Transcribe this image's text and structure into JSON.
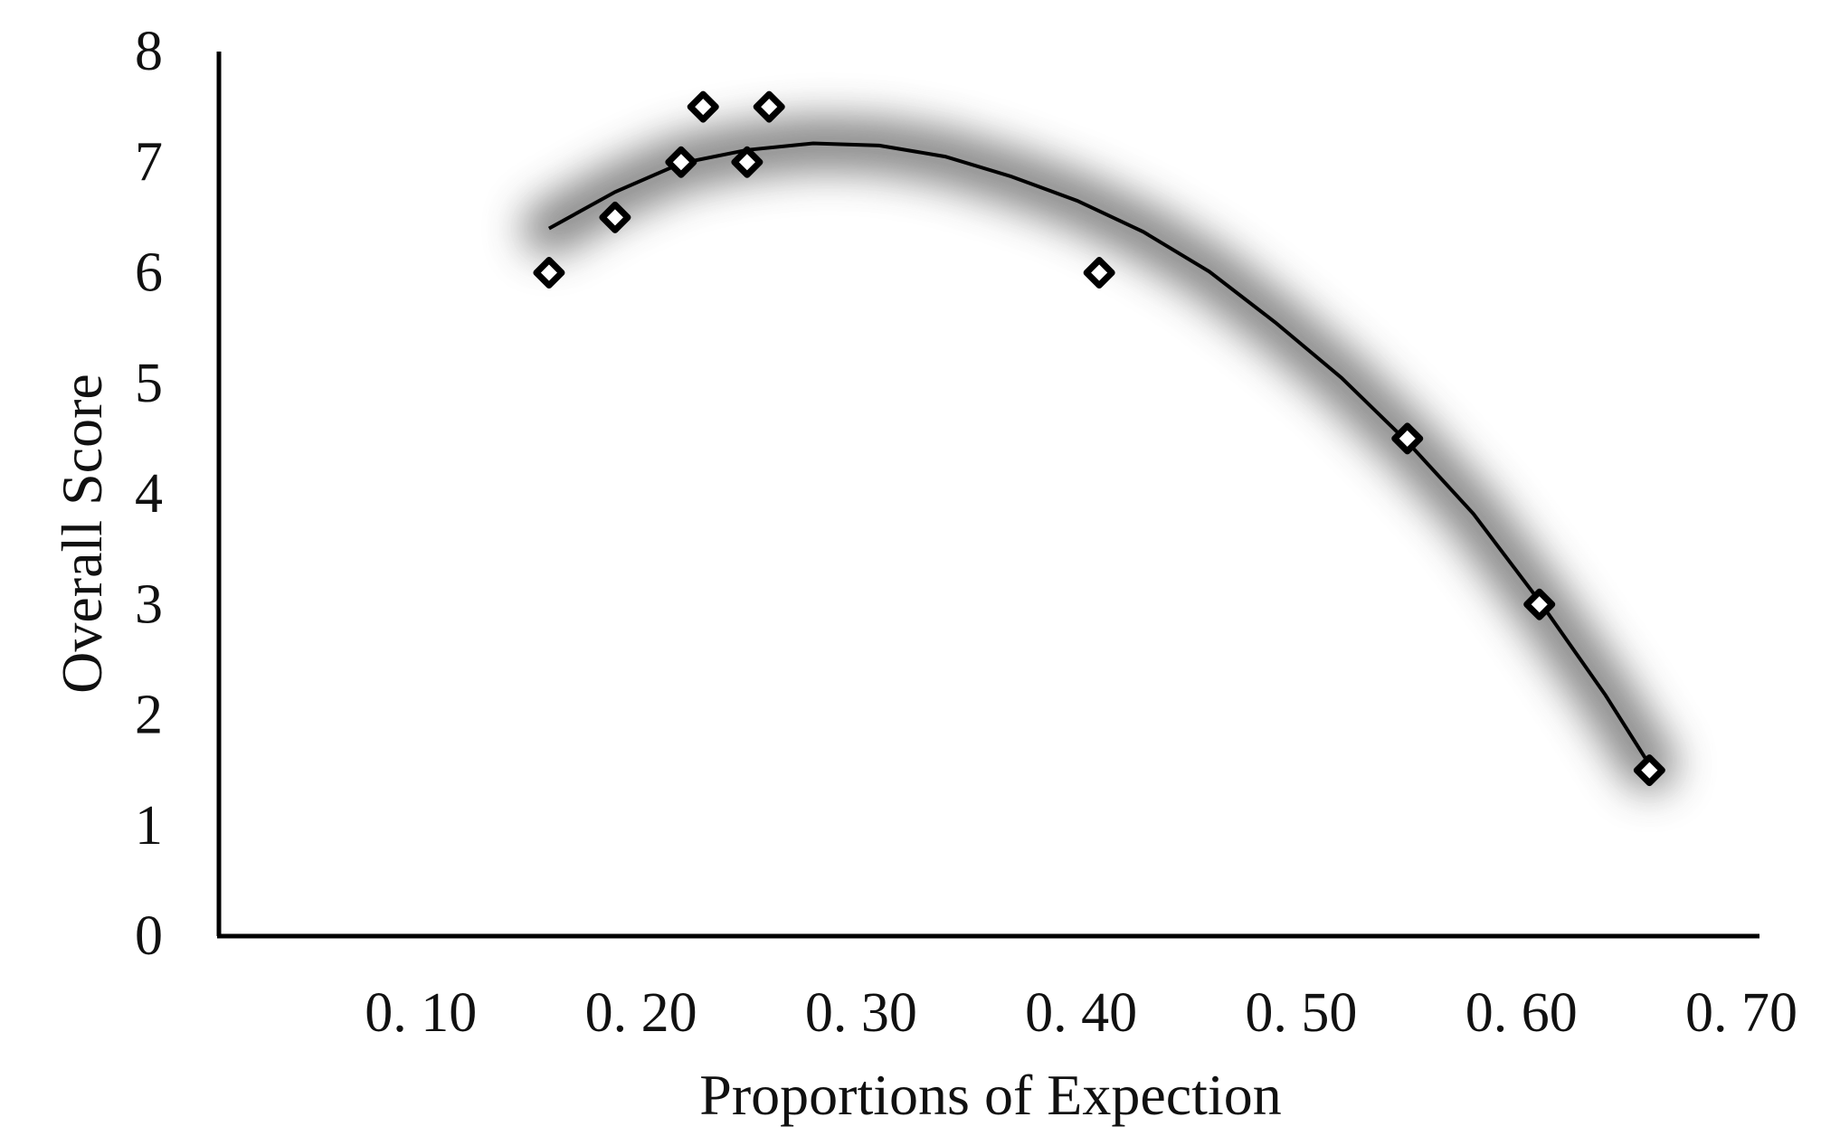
{
  "chart_data": {
    "type": "scatter",
    "title": "",
    "xlabel": "Proportions of Expection",
    "ylabel": "Overall Score",
    "xlim": [
      0.0,
      0.7
    ],
    "ylim": [
      0,
      8
    ],
    "x_ticks": [
      0.1,
      0.2,
      0.3,
      0.4,
      0.5,
      0.6,
      0.7
    ],
    "x_tick_labels": [
      "0. 10",
      "0. 20",
      "0. 30",
      "0. 40",
      "0. 50",
      "0. 60",
      "0. 70"
    ],
    "y_ticks": [
      0,
      1,
      2,
      3,
      4,
      5,
      6,
      7,
      8
    ],
    "y_tick_labels": [
      "0",
      "1",
      "2",
      "3",
      "4",
      "5",
      "6",
      "7",
      "8"
    ],
    "grid": false,
    "legend": "none",
    "series": [
      {
        "marker": "diamond",
        "color": "#000000",
        "points": [
          {
            "x": 0.15,
            "y": 6.0
          },
          {
            "x": 0.18,
            "y": 6.5
          },
          {
            "x": 0.21,
            "y": 7.0
          },
          {
            "x": 0.22,
            "y": 7.5
          },
          {
            "x": 0.24,
            "y": 7.0
          },
          {
            "x": 0.25,
            "y": 7.5
          },
          {
            "x": 0.4,
            "y": 6.0
          },
          {
            "x": 0.54,
            "y": 4.5
          },
          {
            "x": 0.6,
            "y": 3.0
          },
          {
            "x": 0.65,
            "y": 1.5
          }
        ]
      }
    ],
    "trendline": {
      "kind": "polynomial-2",
      "color": "#000000",
      "glow_color": "#7a7a7a",
      "x": [
        0.15,
        0.18,
        0.21,
        0.24,
        0.27,
        0.3,
        0.33,
        0.36,
        0.39,
        0.42,
        0.45,
        0.48,
        0.51,
        0.54,
        0.57,
        0.6,
        0.63,
        0.65
      ],
      "y": [
        6.4,
        6.73,
        6.99,
        7.11,
        7.17,
        7.15,
        7.05,
        6.87,
        6.65,
        6.37,
        6.01,
        5.55,
        5.05,
        4.47,
        3.82,
        3.03,
        2.18,
        1.55
      ]
    }
  }
}
